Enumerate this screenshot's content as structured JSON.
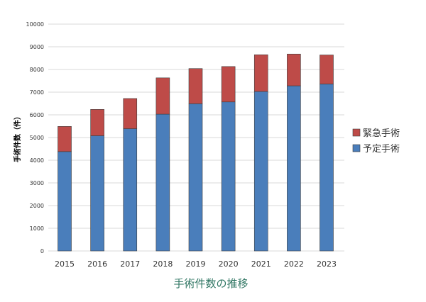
{
  "chart_data": {
    "type": "bar",
    "stacked": true,
    "title": "手術件数の推移",
    "xlabel": "",
    "ylabel": "手術件数（件）",
    "ylim": [
      0,
      10000
    ],
    "yticks": [
      0,
      1000,
      2000,
      3000,
      4000,
      5000,
      6000,
      7000,
      8000,
      9000,
      10000
    ],
    "grid": true,
    "legend_position": "right",
    "categories": [
      "2015",
      "2016",
      "2017",
      "2018",
      "2019",
      "2020",
      "2021",
      "2022",
      "2023"
    ],
    "series": [
      {
        "name": "予定手術",
        "color": "#4a7ebb",
        "values": [
          4380,
          5080,
          5390,
          6030,
          6490,
          6570,
          7030,
          7280,
          7360
        ]
      },
      {
        "name": "緊急手術",
        "color": "#be4b48",
        "values": [
          1110,
          1160,
          1330,
          1600,
          1550,
          1560,
          1620,
          1400,
          1280
        ]
      }
    ]
  }
}
